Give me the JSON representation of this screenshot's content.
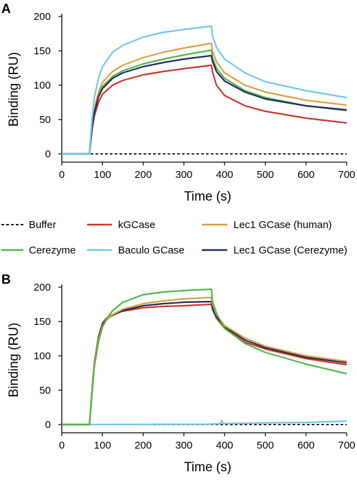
{
  "figure": {
    "panel_labels": [
      "A",
      "B"
    ]
  },
  "legend": {
    "items": [
      {
        "name": "Buffer",
        "color": "#111111",
        "dashed": true
      },
      {
        "name": "kGCase",
        "color": "#d0312d",
        "dashed": false
      },
      {
        "name": "Lec1 GCase (human)",
        "color": "#d9a03e",
        "dashed": false
      },
      {
        "name": "Cerezyme",
        "color": "#4cb847",
        "dashed": false
      },
      {
        "name": "Baculo GCase",
        "color": "#6cc8ee",
        "dashed": false
      },
      {
        "name": "Lec1 GCase (Cerezyme)",
        "color": "#1f2a5e",
        "dashed": false
      }
    ]
  },
  "chart_data": [
    {
      "panel": "A",
      "type": "line",
      "xlabel": "Time (s)",
      "ylabel": "Binding (RU)",
      "xlim": [
        0,
        700
      ],
      "ylim": [
        -5,
        200
      ],
      "xticks": [
        0,
        100,
        200,
        300,
        400,
        500,
        600,
        700
      ],
      "yticks": [
        0,
        50,
        100,
        150,
        200
      ],
      "grid": false,
      "series": [
        {
          "name": "Buffer",
          "x": [
            0,
            700
          ],
          "y": [
            0,
            0
          ]
        },
        {
          "name": "kGCase",
          "x": [
            0,
            68,
            70,
            75,
            80,
            90,
            100,
            125,
            150,
            200,
            250,
            300,
            367,
            368,
            370,
            380,
            400,
            450,
            500,
            600,
            700
          ],
          "y": [
            0,
            0,
            12,
            38,
            55,
            75,
            87,
            100,
            107,
            115,
            120,
            124,
            129,
            128,
            120,
            100,
            85,
            70,
            62,
            52,
            45
          ]
        },
        {
          "name": "Cerezyme",
          "x": [
            0,
            68,
            70,
            75,
            80,
            90,
            100,
            125,
            150,
            200,
            250,
            300,
            367,
            368,
            370,
            380,
            400,
            450,
            500,
            600,
            700
          ],
          "y": [
            0,
            0,
            14,
            42,
            62,
            85,
            98,
            113,
            121,
            131,
            138,
            144,
            151,
            150,
            140,
            125,
            110,
            92,
            82,
            70,
            63
          ]
        },
        {
          "name": "Lec1 GCase (human)",
          "x": [
            0,
            68,
            70,
            75,
            80,
            90,
            100,
            125,
            150,
            200,
            250,
            300,
            367,
            368,
            370,
            380,
            400,
            450,
            500,
            600,
            700
          ],
          "y": [
            0,
            0,
            15,
            45,
            66,
            90,
            104,
            120,
            129,
            140,
            148,
            154,
            161,
            160,
            150,
            134,
            118,
            100,
            90,
            78,
            71
          ]
        },
        {
          "name": "Lec1 GCase (Cerezyme)",
          "x": [
            0,
            68,
            70,
            75,
            80,
            90,
            100,
            125,
            150,
            200,
            250,
            300,
            367,
            368,
            370,
            380,
            400,
            450,
            500,
            600,
            700
          ],
          "y": [
            0,
            0,
            13,
            41,
            60,
            83,
            95,
            110,
            118,
            127,
            133,
            138,
            143,
            142,
            135,
            120,
            106,
            90,
            80,
            70,
            64
          ]
        },
        {
          "name": "Baculo GCase",
          "x": [
            0,
            68,
            70,
            75,
            80,
            90,
            100,
            125,
            150,
            200,
            250,
            300,
            367,
            368,
            370,
            380,
            400,
            450,
            500,
            600,
            700
          ],
          "y": [
            0,
            0,
            18,
            55,
            82,
            110,
            127,
            148,
            158,
            170,
            177,
            181,
            186,
            185,
            172,
            155,
            138,
            118,
            105,
            92,
            82
          ]
        }
      ]
    },
    {
      "panel": "B",
      "type": "line",
      "xlabel": "Time (s)",
      "ylabel": "Binding (RU)",
      "xlim": [
        0,
        700
      ],
      "ylim": [
        -5,
        200
      ],
      "xticks": [
        0,
        100,
        200,
        300,
        400,
        500,
        600,
        700
      ],
      "yticks": [
        0,
        50,
        100,
        150,
        200
      ],
      "grid": false,
      "series": [
        {
          "name": "Buffer",
          "x": [
            0,
            700
          ],
          "y": [
            0,
            0
          ]
        },
        {
          "name": "Baculo GCase",
          "x": [
            0,
            360,
            380,
            390,
            393,
            396,
            400,
            450,
            500,
            600,
            700
          ],
          "y": [
            0,
            0.5,
            1,
            1.5,
            6,
            1,
            1.5,
            2,
            2.5,
            3,
            5
          ]
        },
        {
          "name": "kGCase",
          "x": [
            0,
            68,
            70,
            75,
            80,
            90,
            100,
            110,
            125,
            150,
            200,
            250,
            300,
            367,
            368,
            370,
            380,
            400,
            450,
            500,
            600,
            700
          ],
          "y": [
            0,
            0,
            15,
            55,
            90,
            128,
            148,
            155,
            160,
            165,
            170,
            172,
            173,
            175,
            174,
            168,
            155,
            140,
            120,
            110,
            96,
            87
          ]
        },
        {
          "name": "Lec1 GCase (Cerezyme)",
          "x": [
            0,
            68,
            70,
            75,
            80,
            90,
            100,
            110,
            125,
            150,
            200,
            250,
            300,
            367,
            368,
            370,
            380,
            400,
            450,
            500,
            600,
            700
          ],
          "y": [
            0,
            0,
            15,
            53,
            88,
            126,
            145,
            153,
            159,
            166,
            173,
            176,
            178,
            179,
            178,
            170,
            157,
            142,
            123,
            112,
            98,
            90
          ]
        },
        {
          "name": "Lec1 GCase (human)",
          "x": [
            0,
            68,
            70,
            75,
            80,
            90,
            100,
            110,
            125,
            150,
            200,
            250,
            300,
            367,
            368,
            370,
            380,
            400,
            450,
            500,
            600,
            700
          ],
          "y": [
            0,
            0,
            15,
            52,
            87,
            124,
            143,
            152,
            160,
            168,
            176,
            180,
            183,
            185,
            184,
            176,
            160,
            144,
            126,
            114,
            100,
            92
          ]
        },
        {
          "name": "Cerezyme",
          "x": [
            0,
            68,
            70,
            75,
            80,
            90,
            100,
            110,
            125,
            150,
            200,
            250,
            300,
            367,
            368,
            370,
            380,
            400,
            450,
            500,
            600,
            700
          ],
          "y": [
            0,
            0,
            14,
            50,
            84,
            120,
            142,
            154,
            166,
            178,
            189,
            193,
            195,
            197,
            196,
            180,
            162,
            140,
            118,
            105,
            88,
            74
          ]
        }
      ]
    }
  ]
}
